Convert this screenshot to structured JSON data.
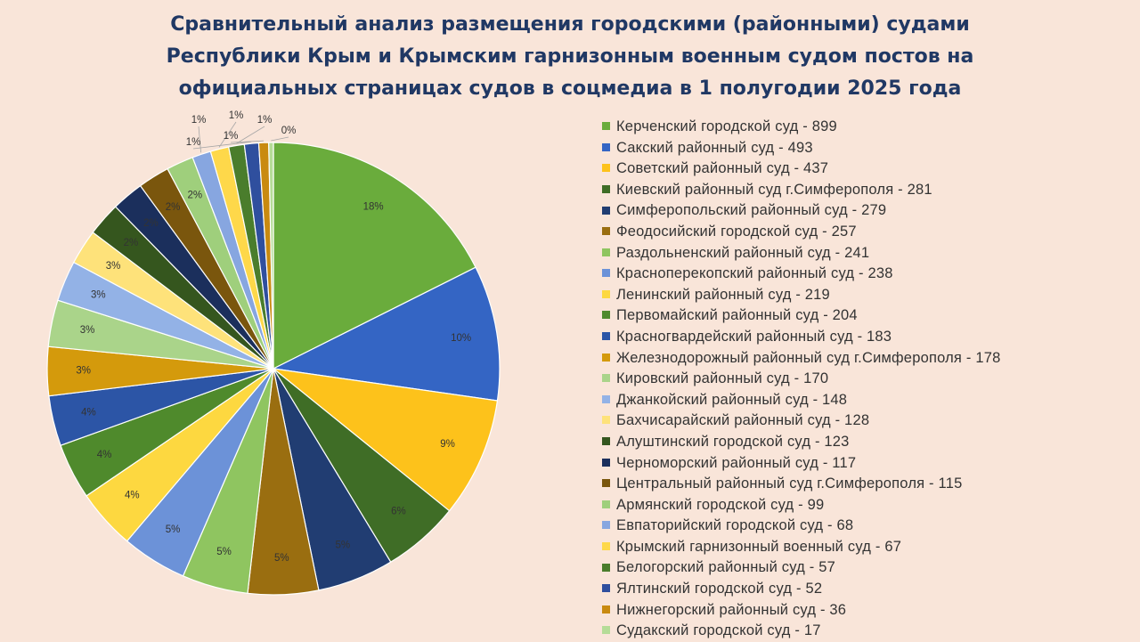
{
  "title_lines": [
    "Сравнительный анализ размещения городскими (районными) судами",
    "Республики Крым и Крымским гарнизонным военным судом постов на",
    "официальных страницах судов в соцмедиа в 1 полугодии 2025 года"
  ],
  "chart_data": {
    "type": "pie",
    "title": "Сравнительный анализ размещения городскими (районными) судами Республики Крым и Крымским гарнизонным военным судом постов на официальных страницах судов в соцмедиа в 1 полугодии 2025 года",
    "legend_position": "right",
    "start": "12 o'clock, clockwise",
    "slices": [
      {
        "label": "Керченский городской суд - 899",
        "value": 899,
        "pct": "18%",
        "color": "#6aac3c"
      },
      {
        "label": "Сакский районный суд - 493",
        "value": 493,
        "pct": "10%",
        "color": "#3465c4"
      },
      {
        "label": "Советский районный суд - 437",
        "value": 437,
        "pct": "9%",
        "color": "#fdc21b"
      },
      {
        "label": "Киевский районный суд г.Симферополя - 281",
        "value": 281,
        "pct": "6%",
        "color": "#3f6d26"
      },
      {
        "label": "Симферопольский районный суд - 279",
        "value": 279,
        "pct": "5%",
        "color": "#213d72"
      },
      {
        "label": "Феодосийский городской суд - 257",
        "value": 257,
        "pct": "5%",
        "color": "#9a6e10"
      },
      {
        "label": "Раздольненский районный суд - 241",
        "value": 241,
        "pct": "5%",
        "color": "#8fc560"
      },
      {
        "label": "Красноперекопский районный суд - 238",
        "value": 238,
        "pct": "5%",
        "color": "#6c92d8"
      },
      {
        "label": "Ленинский районный суд - 219",
        "value": 219,
        "pct": "4%",
        "color": "#fdd840"
      },
      {
        "label": "Первомайский районный суд - 204",
        "value": 204,
        "pct": "4%",
        "color": "#4f8a2c"
      },
      {
        "label": "Красногвардейский районный суд - 183",
        "value": 183,
        "pct": "4%",
        "color": "#2c55a6"
      },
      {
        "label": "Железнодорожный районный суд г.Симферополя - 178",
        "value": 178,
        "pct": "3%",
        "color": "#d49a0c"
      },
      {
        "label": "Кировский районный суд - 170",
        "value": 170,
        "pct": "3%",
        "color": "#aad48a"
      },
      {
        "label": "Джанкойский районный суд - 148",
        "value": 148,
        "pct": "3%",
        "color": "#93b2e6"
      },
      {
        "label": "Бахчисарайский районный суд - 128",
        "value": 128,
        "pct": "3%",
        "color": "#fee27a"
      },
      {
        "label": "Алуштинский городской суд - 123",
        "value": 123,
        "pct": "2%",
        "color": "#35561e"
      },
      {
        "label": "Черноморский районный суд - 117",
        "value": 117,
        "pct": "2%",
        "color": "#1b2f5c"
      },
      {
        "label": "Центральный районный суд г.Симферополя - 115",
        "value": 115,
        "pct": "2%",
        "color": "#7a560d"
      },
      {
        "label": "Армянский городской суд - 99",
        "value": 99,
        "pct": "2%",
        "color": "#9fcf7c"
      },
      {
        "label": "Евпаторийский городской суд - 68",
        "value": 68,
        "pct": "1%",
        "color": "#87a6e0"
      },
      {
        "label": "Крымский гарнизонный военный суд - 67",
        "value": 67,
        "pct": "1%",
        "color": "#fed84a"
      },
      {
        "label": "Белогорский районный суд - 57",
        "value": 57,
        "pct": "1%",
        "color": "#4a7d2c"
      },
      {
        "label": "Ялтинский городской суд - 52",
        "value": 52,
        "pct": "1%",
        "color": "#2f4f9e"
      },
      {
        "label": "Нижнегорский районный суд - 36",
        "value": 36,
        "pct": "1%",
        "color": "#c98a10"
      },
      {
        "label": "Судакский городской суд - 17",
        "value": 17,
        "pct": "0%",
        "color": "#b5dc97"
      }
    ]
  }
}
